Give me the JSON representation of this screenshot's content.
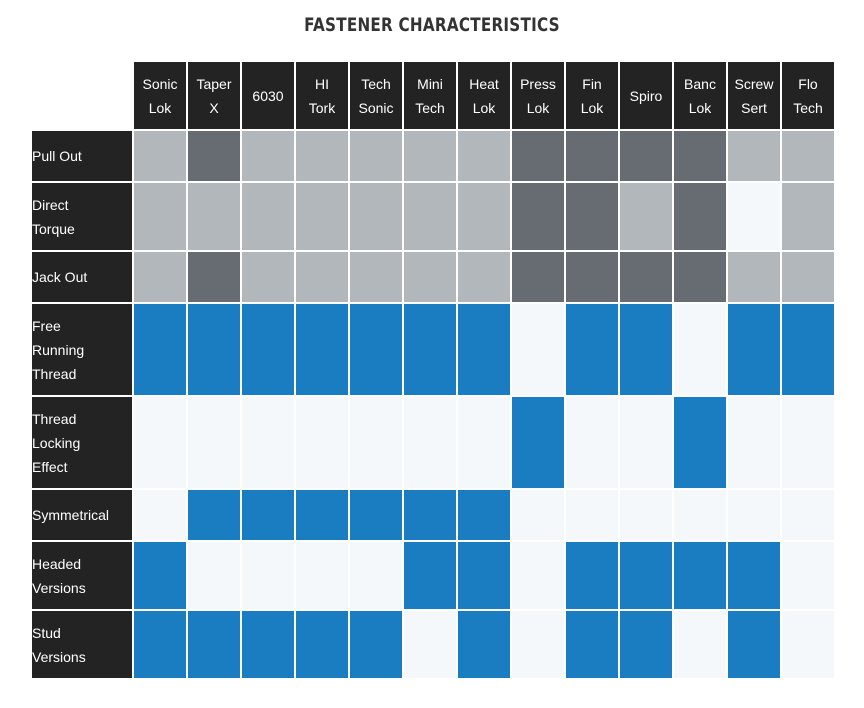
{
  "title": "FASTENER CHARACTERISTICS",
  "colors": {
    "light": "#b1b7bb",
    "dark": "#676b72",
    "blue": "#1a7cc1",
    "empty": "#f5f8fb",
    "header": "#232323"
  },
  "columns": [
    "Sonic\nLok",
    "Taper\nX",
    "6030",
    "HI\nTork",
    "Tech\nSonic",
    "Mini\nTech",
    "Heat\nLok",
    "Press\nLok",
    "Fin\nLok",
    "Spiro",
    "Banc\nLok",
    "Screw\nSert",
    "Flo\nTech"
  ],
  "rows": [
    {
      "label": "Pull Out",
      "height": "s",
      "cells": [
        "light",
        "dark",
        "light",
        "light",
        "light",
        "light",
        "light",
        "dark",
        "dark",
        "dark",
        "dark",
        "light",
        "light"
      ]
    },
    {
      "label": "Direct\nTorque",
      "height": "m",
      "cells": [
        "light",
        "light",
        "light",
        "light",
        "light",
        "light",
        "light",
        "dark",
        "dark",
        "light",
        "dark",
        "empty",
        "light"
      ]
    },
    {
      "label": "Jack Out",
      "height": "s",
      "cells": [
        "light",
        "dark",
        "light",
        "light",
        "light",
        "light",
        "light",
        "dark",
        "dark",
        "dark",
        "dark",
        "light",
        "light"
      ]
    },
    {
      "label": "Free\nRunning\nThread",
      "height": "l",
      "cells": [
        "blue",
        "blue",
        "blue",
        "blue",
        "blue",
        "blue",
        "blue",
        "empty",
        "blue",
        "blue",
        "empty",
        "blue",
        "blue"
      ]
    },
    {
      "label": "Thread\nLocking\nEffect",
      "height": "l",
      "cells": [
        "empty",
        "empty",
        "empty",
        "empty",
        "empty",
        "empty",
        "empty",
        "blue",
        "empty",
        "empty",
        "blue",
        "empty",
        "empty"
      ]
    },
    {
      "label": "Symmetrical",
      "height": "s",
      "cells": [
        "empty",
        "blue",
        "blue",
        "blue",
        "blue",
        "blue",
        "blue",
        "empty",
        "empty",
        "empty",
        "empty",
        "empty",
        "empty"
      ]
    },
    {
      "label": "Headed\nVersions",
      "height": "m",
      "cells": [
        "blue",
        "empty",
        "empty",
        "empty",
        "empty",
        "blue",
        "blue",
        "empty",
        "blue",
        "blue",
        "blue",
        "blue",
        "empty"
      ]
    },
    {
      "label": "Stud\nVersions",
      "height": "m",
      "cells": [
        "blue",
        "blue",
        "blue",
        "blue",
        "blue",
        "empty",
        "blue",
        "empty",
        "blue",
        "blue",
        "empty",
        "blue",
        "empty"
      ]
    }
  ]
}
